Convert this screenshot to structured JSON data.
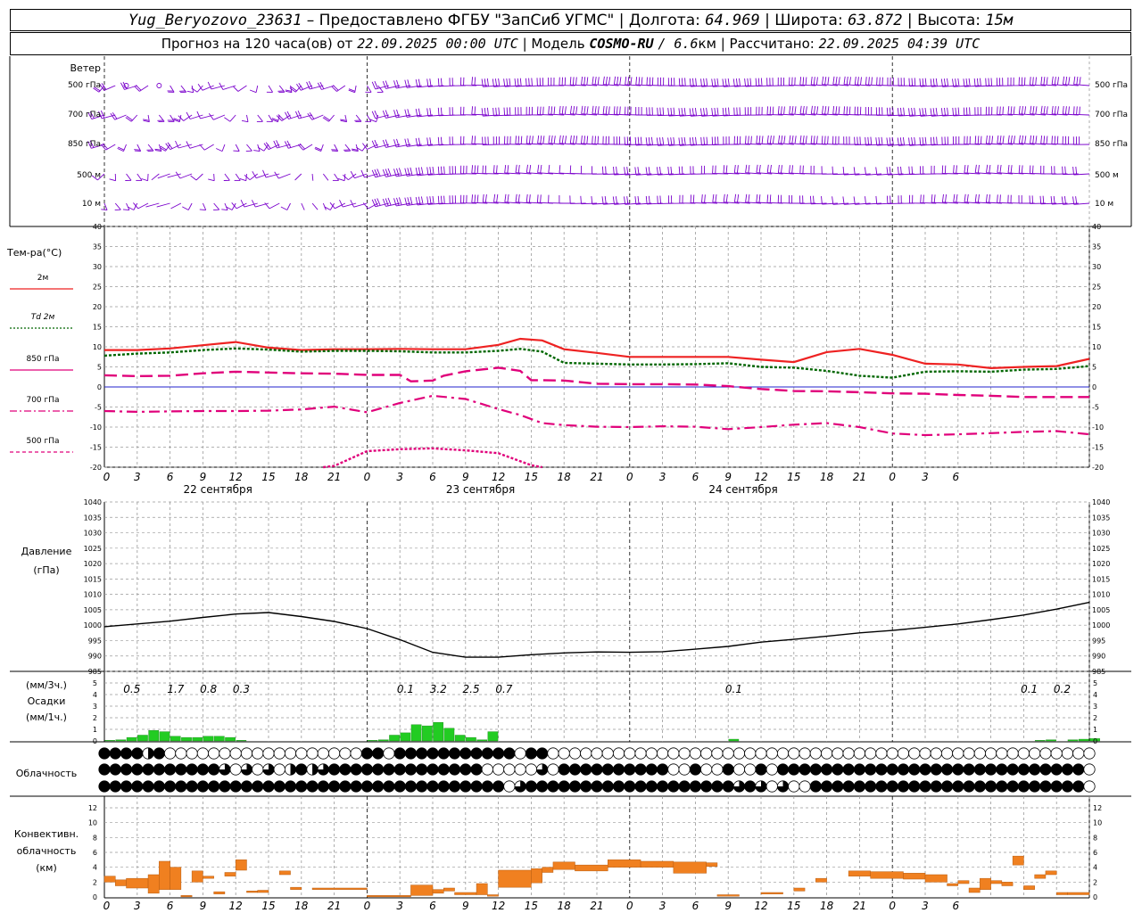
{
  "header": {
    "station": "Yug_Beryozovo_23631",
    "provider_text": "– Предоставлено ФГБУ \"ЗапСиб УГМС\"",
    "lon_label": "Долгота:",
    "lon_value": "64.969",
    "lat_label": "Широта:",
    "lat_value": "63.872",
    "alt_label": "Высота:",
    "alt_value": "15м",
    "forecast_label": "Прогноз на 120 часа(ов) от",
    "forecast_time": "22.09.2025 00:00 UTC",
    "model_label": "Модель",
    "model_name": "COSMO-RU",
    "model_res": "/ 6.6",
    "model_res_unit": "км",
    "calc_label": "Рассчитано:",
    "calc_time": "22.09.2025 04:39 UTC"
  },
  "colors": {
    "wind": "#7a00cc",
    "t2m": "#ee2222",
    "td2m": "#006600",
    "p850": "#e0007a",
    "p700": "#e0007a",
    "p500": "#e0007a",
    "pressure": "#000000",
    "precip": "#22cc22",
    "convective": "#f08020",
    "grid": "#999999"
  },
  "wind_panel": {
    "title": "Ветер",
    "levels": [
      "500 гПа",
      "700 гПа",
      "850 гПа",
      "500 м",
      "10 м"
    ]
  },
  "temp_panel": {
    "title": "Тем-ра(°С)",
    "legend": [
      {
        "key": "t2m",
        "label": "2м",
        "style": "solid"
      },
      {
        "key": "td2m",
        "label": "Td  2м",
        "style": "dotted"
      },
      {
        "key": "p850",
        "label": "850 гПа",
        "style": "solid"
      },
      {
        "key": "p700",
        "label": "700 гПа",
        "style": "dashdot"
      },
      {
        "key": "p500",
        "label": "500 гПа",
        "style": "dashed"
      }
    ],
    "yticks": [
      40,
      35,
      30,
      25,
      20,
      15,
      10,
      5,
      0,
      -5,
      -10,
      -15,
      -20
    ]
  },
  "time_axis": {
    "hour_labels": [
      "0",
      "3",
      "6",
      "9",
      "12",
      "15",
      "18",
      "21",
      "0",
      "3",
      "6",
      "9",
      "12",
      "15",
      "18",
      "21",
      "0",
      "3",
      "6",
      "9",
      "12",
      "15",
      "18",
      "21",
      "0",
      "3",
      "6"
    ],
    "day_labels": [
      "22 сентября",
      "23 сентября",
      "24 сентября"
    ]
  },
  "pressure_panel": {
    "title": "Давление",
    "unit": "(гПа)",
    "yticks": [
      1040,
      1035,
      1030,
      1025,
      1020,
      1015,
      1010,
      1005,
      1000,
      995,
      990,
      985
    ]
  },
  "precip_panel": {
    "title_3h": "(мм/3ч.)",
    "title": "Осадки",
    "title_1h": "(мм/1ч.)",
    "yticks": [
      5,
      4,
      3,
      2,
      1,
      0
    ],
    "totals_3h": [
      {
        "h": 3,
        "v": "0.5"
      },
      {
        "h": 7,
        "v": "1.7"
      },
      {
        "h": 10,
        "v": "0.8"
      },
      {
        "h": 13,
        "v": "0.3"
      },
      {
        "h": 28,
        "v": "0.1"
      },
      {
        "h": 31,
        "v": "3.2"
      },
      {
        "h": 34,
        "v": "2.5"
      },
      {
        "h": 37,
        "v": "0.7"
      },
      {
        "h": 58,
        "v": "0.1"
      },
      {
        "h": 85,
        "v": "0.1"
      },
      {
        "h": 88,
        "v": "0.2"
      }
    ]
  },
  "cloud_panel": {
    "title": "Облачность"
  },
  "conv_panel": {
    "title_1": "Конвективн.",
    "title_2": "облачность",
    "title_3": "(км)",
    "yticks": [
      12,
      10,
      8,
      6,
      4,
      2,
      0
    ]
  },
  "chart_data": [
    {
      "type": "line",
      "title": "Тем-ра(°С)",
      "x_unit": "hours from 22.09.2025 00:00 UTC",
      "ylim": [
        -20,
        40
      ],
      "grid": true,
      "series": [
        {
          "name": "2м",
          "x": [
            0,
            3,
            6,
            9,
            12,
            15,
            18,
            21,
            24,
            27,
            30,
            33,
            36,
            38,
            40,
            42,
            45,
            48,
            51,
            54,
            57,
            60,
            63,
            66,
            69,
            72,
            75,
            78,
            81,
            84,
            87,
            90
          ],
          "values": [
            9.2,
            9.2,
            9.6,
            10.4,
            11.2,
            9.8,
            9.2,
            9.4,
            9.4,
            9.5,
            9.4,
            9.4,
            10.5,
            12.0,
            11.6,
            9.4,
            8.5,
            7.5,
            7.5,
            7.5,
            7.5,
            6.8,
            6.2,
            8.7,
            9.5,
            8.0,
            5.8,
            5.6,
            4.7,
            5.0,
            5.2,
            7.0
          ]
        },
        {
          "name": "Td  2м",
          "x": [
            0,
            3,
            6,
            9,
            12,
            15,
            18,
            21,
            24,
            27,
            30,
            33,
            36,
            38,
            40,
            42,
            45,
            48,
            51,
            54,
            57,
            60,
            63,
            66,
            69,
            72,
            75,
            78,
            81,
            84,
            87,
            90
          ],
          "values": [
            7.8,
            8.3,
            8.6,
            9.2,
            9.6,
            9.3,
            8.8,
            9.0,
            9.0,
            8.9,
            8.6,
            8.6,
            9.0,
            9.5,
            8.8,
            6.0,
            5.8,
            5.6,
            5.6,
            5.7,
            5.9,
            5.0,
            4.8,
            4.0,
            2.8,
            2.3,
            3.8,
            3.9,
            3.8,
            4.3,
            4.5,
            5.2
          ]
        },
        {
          "name": "850 гПа",
          "x": [
            0,
            3,
            6,
            9,
            12,
            15,
            18,
            21,
            24,
            27,
            28,
            30,
            31,
            33,
            36,
            38,
            39,
            40,
            42,
            45,
            48,
            51,
            54,
            57,
            60,
            63,
            66,
            69,
            72,
            75,
            78,
            81,
            84,
            87,
            90
          ],
          "values": [
            2.9,
            2.7,
            2.8,
            3.4,
            3.8,
            3.6,
            3.4,
            3.3,
            3.0,
            3.0,
            1.4,
            1.6,
            2.8,
            3.9,
            4.8,
            4.0,
            1.7,
            1.7,
            1.6,
            0.8,
            0.7,
            0.7,
            0.6,
            0.2,
            -0.5,
            -1.0,
            -1.1,
            -1.3,
            -1.6,
            -1.7,
            -2.0,
            -2.2,
            -2.5,
            -2.5,
            -2.5
          ]
        },
        {
          "name": "700 гПа",
          "x": [
            0,
            3,
            6,
            9,
            12,
            15,
            18,
            21,
            24,
            27,
            30,
            33,
            36,
            38,
            40,
            42,
            45,
            48,
            51,
            54,
            57,
            60,
            63,
            66,
            69,
            72,
            75,
            78,
            81,
            84,
            87,
            90
          ],
          "values": [
            -6.0,
            -6.2,
            -6.1,
            -6.0,
            -6.0,
            -5.9,
            -5.6,
            -4.9,
            -6.3,
            -4.0,
            -2.2,
            -3.0,
            -5.5,
            -7.0,
            -9.0,
            -9.5,
            -9.9,
            -10.0,
            -9.8,
            -9.9,
            -10.5,
            -10.0,
            -9.4,
            -9.0,
            -10.0,
            -11.6,
            -12.0,
            -11.8,
            -11.5,
            -11.2,
            -11.0,
            -11.8
          ]
        },
        {
          "name": "500 гПа",
          "x": [
            20,
            21,
            24,
            27,
            30,
            33,
            36,
            38,
            39,
            40
          ],
          "values": [
            -20.0,
            -19.7,
            -16.0,
            -15.5,
            -15.3,
            -15.8,
            -16.5,
            -18.5,
            -19.5,
            -20.0
          ]
        }
      ]
    },
    {
      "type": "line",
      "title": "Давление",
      "ylabel": "(гПа)",
      "ylim": [
        985,
        1040
      ],
      "x": [
        0,
        3,
        6,
        9,
        12,
        15,
        18,
        21,
        24,
        27,
        30,
        33,
        36,
        39,
        42,
        45,
        48,
        51,
        54,
        57,
        60,
        63,
        66,
        69,
        72,
        75,
        78,
        81,
        84,
        87,
        90
      ],
      "values": [
        999.5,
        1000.4,
        1001.3,
        1002.5,
        1003.6,
        1004.1,
        1002.8,
        1001.2,
        998.9,
        995.3,
        991.2,
        989.6,
        989.6,
        990.4,
        991.0,
        991.3,
        991.2,
        991.4,
        992.2,
        993.1,
        994.5,
        995.4,
        996.4,
        997.5,
        998.3,
        999.3,
        1000.4,
        1001.8,
        1003.3,
        1005.2,
        1007.4
      ]
    },
    {
      "type": "bar",
      "title": "Осадки",
      "ylabel": "(мм/1ч.)",
      "ylim": [
        0,
        5
      ],
      "x": [
        0,
        1,
        2,
        3,
        4,
        5,
        6,
        7,
        8,
        9,
        10,
        11,
        12,
        24,
        25,
        26,
        27,
        28,
        29,
        30,
        31,
        32,
        33,
        34,
        35,
        36,
        37,
        38,
        39,
        40,
        41,
        42,
        43,
        44,
        45,
        46,
        47,
        48,
        49,
        50,
        51,
        52,
        53,
        54,
        55,
        56,
        57,
        58,
        59,
        60,
        61,
        62,
        63,
        64,
        65,
        66,
        67,
        68,
        69,
        70,
        71,
        72,
        73,
        74,
        75,
        76,
        77,
        78,
        79,
        80,
        81,
        82,
        83,
        84,
        85,
        86,
        87,
        88,
        89,
        90
      ],
      "values": [
        0.05,
        0.1,
        0.3,
        0.5,
        0.9,
        0.8,
        0.4,
        0.3,
        0.3,
        0.4,
        0.4,
        0.3,
        0.05,
        0.05,
        0.1,
        0.5,
        0.7,
        1.4,
        1.3,
        1.6,
        1.1,
        0.5,
        0.3,
        0.1,
        0.8,
        0.0,
        0.0,
        0.0,
        0.0,
        0.0,
        0.0,
        0.0,
        0.0,
        0.0,
        0.0,
        0.0,
        0.0,
        0.0,
        0.0,
        0.0,
        0.0,
        0.0,
        0.0,
        0.0,
        0.0,
        0.0,
        0.15,
        0.0,
        0.0,
        0.0,
        0.0,
        0.0,
        0.0,
        0.0,
        0.0,
        0.0,
        0.0,
        0.0,
        0.0,
        0.0,
        0.0,
        0.0,
        0.0,
        0.0,
        0.0,
        0.0,
        0.0,
        0.0,
        0.0,
        0.0,
        0.0,
        0.0,
        0.0,
        0.0,
        0.05,
        0.1,
        0.0,
        0.1,
        0.15,
        0.2
      ]
    },
    {
      "type": "heatmap",
      "title": "Облачность",
      "rows": [
        "upper",
        "middle",
        "lower"
      ],
      "encoding": "eighths 0-8 per hour",
      "values": [
        "888848000000000000000000880888888888880880000000000000000000000000000000000000000000000000",
        "888888888886060604846888888888888880000060888888888800800800808888888888888888888888888888",
        "888888888888888888888888888888888888806888888888888888888868606008888888888888888888888888"
      ]
    },
    {
      "type": "bar",
      "title": "Конвективн. облачность",
      "ylabel": "(км)",
      "ylim": [
        0,
        13
      ],
      "segments_km": [
        [
          0,
          1,
          2.0,
          2.8
        ],
        [
          1,
          2,
          1.5,
          2.3
        ],
        [
          2,
          4,
          1.2,
          2.5
        ],
        [
          4,
          5,
          0.5,
          3.0
        ],
        [
          5,
          6,
          1.0,
          4.8
        ],
        [
          6,
          7,
          1.0,
          4.0
        ],
        [
          7,
          8,
          0.1,
          0.2
        ],
        [
          8,
          9,
          2.0,
          3.5
        ],
        [
          9,
          10,
          2.5,
          2.8
        ],
        [
          10,
          11,
          0.4,
          0.7
        ],
        [
          11,
          12,
          2.8,
          3.3
        ],
        [
          12,
          13,
          3.6,
          5.0
        ],
        [
          13,
          14,
          0.6,
          0.8
        ],
        [
          14,
          15,
          0.6,
          0.9
        ],
        [
          16,
          17,
          3.0,
          3.5
        ],
        [
          17,
          18,
          1.0,
          1.3
        ],
        [
          19,
          24,
          1.0,
          1.2
        ],
        [
          24,
          28,
          0.1,
          0.2
        ],
        [
          28,
          30,
          0.2,
          1.6
        ],
        [
          30,
          31,
          0.5,
          1.0
        ],
        [
          31,
          32,
          0.8,
          1.2
        ],
        [
          32,
          34,
          0.3,
          0.6
        ],
        [
          34,
          35,
          0.3,
          1.8
        ],
        [
          35,
          36,
          0.1,
          0.3
        ],
        [
          36,
          39,
          1.3,
          3.6
        ],
        [
          39,
          40,
          1.9,
          3.8
        ],
        [
          40,
          41,
          3.3,
          4.0
        ],
        [
          41,
          43,
          3.7,
          4.7
        ],
        [
          43,
          46,
          3.5,
          4.3
        ],
        [
          46,
          49,
          4.0,
          5.0
        ],
        [
          49,
          52,
          4.0,
          4.8
        ],
        [
          52,
          55,
          3.2,
          4.7
        ],
        [
          55,
          56,
          4.1,
          4.6
        ],
        [
          56,
          58,
          0.1,
          0.3
        ],
        [
          60,
          62,
          0.4,
          0.6
        ],
        [
          63,
          64,
          0.8,
          1.2
        ],
        [
          65,
          66,
          2.0,
          2.5
        ],
        [
          68,
          70,
          2.8,
          3.5
        ],
        [
          70,
          73,
          2.5,
          3.4
        ],
        [
          73,
          75,
          2.4,
          3.2
        ],
        [
          75,
          77,
          2.0,
          3.0
        ],
        [
          77,
          78,
          1.5,
          1.8
        ],
        [
          78,
          79,
          1.8,
          2.2
        ],
        [
          79,
          80,
          0.6,
          1.2
        ],
        [
          80,
          81,
          1.0,
          2.5
        ],
        [
          81,
          82,
          1.8,
          2.2
        ],
        [
          82,
          83,
          1.5,
          2.0
        ],
        [
          83,
          84,
          4.3,
          5.5
        ],
        [
          84,
          85,
          1.0,
          1.5
        ],
        [
          85,
          86,
          2.5,
          3.0
        ],
        [
          86,
          87,
          3.0,
          3.5
        ],
        [
          87,
          88,
          0.3,
          0.6
        ],
        [
          88,
          90,
          0.3,
          0.6
        ]
      ]
    }
  ]
}
